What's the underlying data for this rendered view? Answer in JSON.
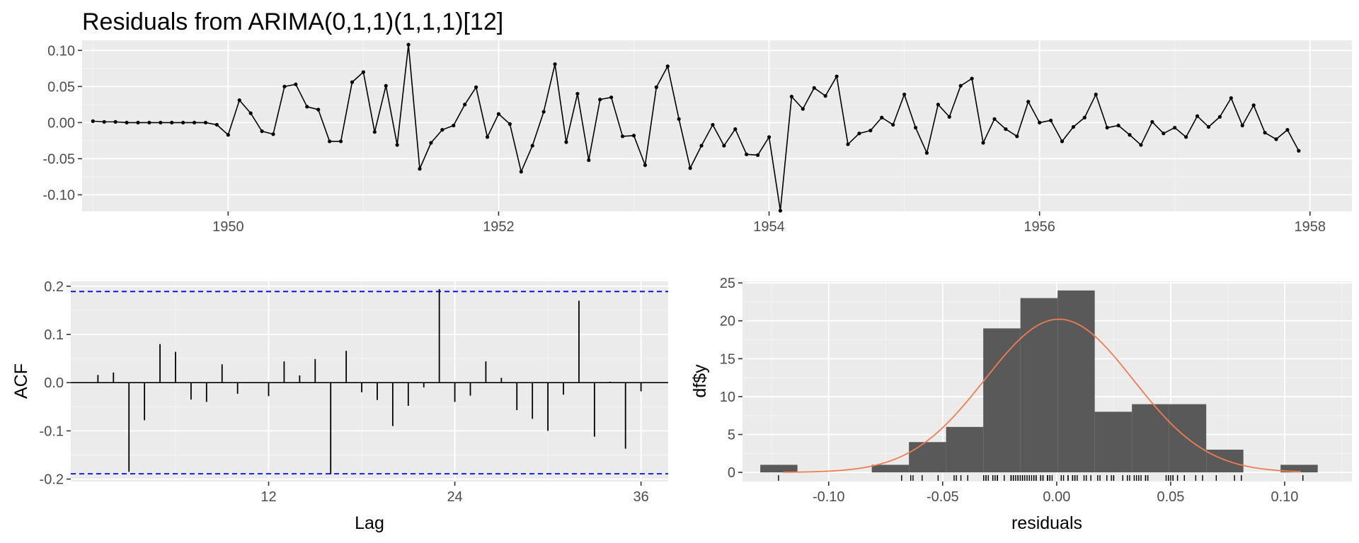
{
  "chart_data": [
    {
      "id": "residual-series",
      "type": "line",
      "title": "Residuals from ARIMA(0,1,1)(1,1,1)[12]",
      "xlabel": "",
      "ylabel": "",
      "xlim": [
        1948.92,
        1958.31
      ],
      "ylim": [
        -0.123,
        0.114
      ],
      "x_ticks": [
        1950,
        1952,
        1954,
        1956,
        1958
      ],
      "x_tick_labels": [
        "1950",
        "1952",
        "1954",
        "1956",
        "1958"
      ],
      "y_ticks": [
        -0.1,
        -0.05,
        0.0,
        0.05,
        0.1
      ],
      "y_tick_labels": [
        "-0.10",
        "-0.05",
        "0.00",
        "0.05",
        "0.10"
      ],
      "grid": true,
      "x_start": 1949,
      "x_step": 0.083333,
      "values": [
        0.002,
        0.001,
        0.001,
        0.0,
        0.0,
        0.0,
        0.0,
        0.0,
        0.0,
        0.0,
        0.0,
        -0.003,
        -0.017,
        0.031,
        0.013,
        -0.012,
        -0.016,
        0.05,
        0.053,
        0.022,
        0.018,
        -0.026,
        -0.026,
        0.056,
        0.07,
        -0.013,
        0.051,
        -0.031,
        0.108,
        -0.064,
        -0.028,
        -0.01,
        -0.004,
        0.025,
        0.049,
        -0.02,
        0.012,
        -0.002,
        -0.068,
        -0.032,
        0.015,
        0.081,
        -0.027,
        0.04,
        -0.052,
        0.032,
        0.035,
        -0.019,
        -0.018,
        -0.059,
        0.049,
        0.078,
        0.005,
        -0.063,
        -0.032,
        -0.003,
        -0.032,
        -0.009,
        -0.044,
        -0.045,
        -0.02,
        -0.122,
        0.036,
        0.019,
        0.048,
        0.037,
        0.064,
        -0.03,
        -0.015,
        -0.011,
        0.007,
        -0.003,
        0.039,
        -0.007,
        -0.042,
        0.025,
        0.008,
        0.051,
        0.061,
        -0.028,
        0.005,
        -0.009,
        -0.019,
        0.029,
        0.0,
        0.003,
        -0.026,
        -0.006,
        0.007,
        0.039,
        -0.007,
        -0.004,
        -0.017,
        -0.031,
        0.001,
        -0.015,
        -0.007,
        -0.02,
        0.009,
        -0.006,
        0.008,
        0.034,
        -0.004,
        0.024,
        -0.014,
        -0.023,
        -0.01,
        -0.039
      ]
    },
    {
      "id": "acf",
      "type": "bar",
      "title": "",
      "xlabel": "Lag",
      "ylabel": "ACF",
      "xlim": [
        -0.75,
        37.75
      ],
      "ylim": [
        -0.205,
        0.21
      ],
      "x_ticks": [
        12,
        24,
        36
      ],
      "x_tick_labels": [
        "12",
        "24",
        "36"
      ],
      "y_ticks": [
        -0.2,
        -0.1,
        0.0,
        0.1,
        0.2
      ],
      "y_tick_labels": [
        "-0.2",
        "-0.1",
        "0.0",
        "0.1",
        "0.2"
      ],
      "grid": true,
      "confidence_bound": 0.189,
      "lags": [
        1,
        2,
        3,
        4,
        5,
        6,
        7,
        8,
        9,
        10,
        11,
        12,
        13,
        14,
        15,
        16,
        17,
        18,
        19,
        20,
        21,
        22,
        23,
        24,
        25,
        26,
        27,
        28,
        29,
        30,
        31,
        32,
        33,
        34,
        35,
        36
      ],
      "values": [
        0.016,
        0.021,
        -0.185,
        -0.078,
        0.08,
        0.064,
        -0.035,
        -0.04,
        0.038,
        -0.023,
        0.0,
        -0.028,
        0.044,
        0.015,
        0.049,
        -0.19,
        0.066,
        -0.02,
        -0.036,
        -0.09,
        -0.048,
        -0.01,
        0.194,
        -0.04,
        -0.027,
        0.044,
        0.01,
        -0.057,
        -0.075,
        -0.1,
        -0.025,
        0.17,
        -0.112,
        0.002,
        -0.137,
        -0.018
      ]
    },
    {
      "id": "histogram",
      "type": "bar",
      "title": "",
      "xlabel": "residuals",
      "ylabel": "df$y",
      "xlim": [
        -0.1378,
        0.1295
      ],
      "ylim": [
        -1.2,
        25.2
      ],
      "x_ticks": [
        -0.1,
        -0.05,
        0.0,
        0.05,
        0.1
      ],
      "x_tick_labels": [
        "-0.10",
        "-0.05",
        "0.00",
        "0.05",
        "0.10"
      ],
      "y_ticks": [
        0,
        5,
        10,
        15,
        20,
        25
      ],
      "y_tick_labels": [
        "0",
        "5",
        "10",
        "15",
        "20",
        "25"
      ],
      "grid": true,
      "bin_width": 0.0163,
      "bins": [
        {
          "from": -0.13,
          "to": -0.1137,
          "count": 1
        },
        {
          "from": -0.1137,
          "to": -0.0974,
          "count": 0
        },
        {
          "from": -0.0974,
          "to": -0.0811,
          "count": 0
        },
        {
          "from": -0.0811,
          "to": -0.0648,
          "count": 1
        },
        {
          "from": -0.0648,
          "to": -0.0485,
          "count": 4
        },
        {
          "from": -0.0485,
          "to": -0.0322,
          "count": 6
        },
        {
          "from": -0.0322,
          "to": -0.0159,
          "count": 19
        },
        {
          "from": -0.0159,
          "to": 0.0004,
          "count": 23
        },
        {
          "from": 0.0004,
          "to": 0.0167,
          "count": 24
        },
        {
          "from": 0.0167,
          "to": 0.033,
          "count": 8
        },
        {
          "from": 0.033,
          "to": 0.0493,
          "count": 9
        },
        {
          "from": 0.0493,
          "to": 0.0656,
          "count": 9
        },
        {
          "from": 0.0656,
          "to": 0.0819,
          "count": 3
        },
        {
          "from": 0.0819,
          "to": 0.0982,
          "count": 0
        },
        {
          "from": 0.0982,
          "to": 0.1145,
          "count": 1
        }
      ],
      "normal_curve": {
        "mean": 0.001,
        "sd": 0.0325,
        "scale": 1.6463
      },
      "colors": {
        "bars": "#595959",
        "curve": "#f07c52"
      }
    }
  ],
  "colors": {
    "panel": "#ebebeb",
    "grid_major": "#ffffff",
    "line": "#000000",
    "bound": "#0000ff"
  }
}
